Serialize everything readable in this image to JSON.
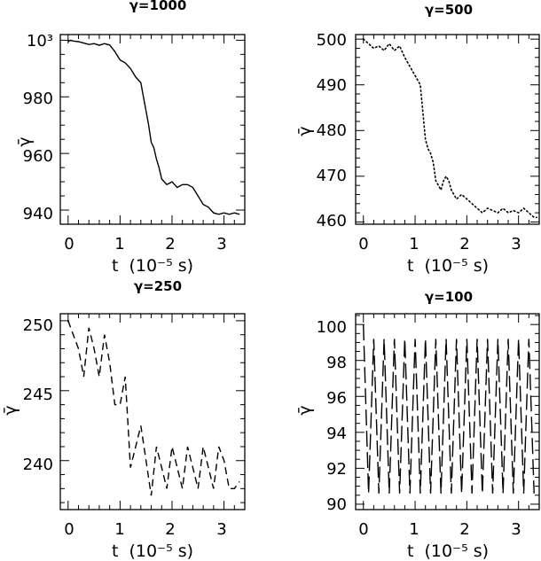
{
  "chart_data": [
    {
      "type": "line",
      "title": "γ=1000",
      "xlabel": "t  (10⁻⁵ s)",
      "ylabel": "γ̄",
      "xlim": [
        -0.15,
        3.4
      ],
      "ylim": [
        935,
        1002
      ],
      "xticks": [
        "0",
        "1",
        "2",
        "3"
      ],
      "yticks": [
        "10³",
        "980",
        "960",
        "940"
      ],
      "linestyle": "solid",
      "series": [
        {
          "x": [
            0,
            0.05,
            0.1,
            0.2,
            0.3,
            0.4,
            0.5,
            0.6,
            0.7,
            0.8,
            0.9,
            1.0,
            1.1,
            1.2,
            1.3,
            1.4,
            1.45,
            1.5,
            1.55,
            1.6,
            1.65,
            1.7,
            1.75,
            1.8,
            1.85,
            1.9,
            1.95,
            2.0,
            2.05,
            2.1,
            2.2,
            2.3,
            2.4,
            2.5,
            2.6,
            2.7,
            2.75,
            2.8,
            2.9,
            3.0,
            3.1,
            3.2,
            3.3
          ],
          "y": [
            999.5,
            1000,
            999.7,
            999.5,
            999,
            998.5,
            998.8,
            998.2,
            998.8,
            998.3,
            996,
            993,
            992,
            990,
            987,
            985,
            980,
            975,
            970,
            964,
            962,
            958,
            955,
            951,
            950,
            949,
            949.5,
            950,
            949,
            948,
            949,
            949,
            948,
            945,
            942,
            941,
            940,
            939,
            938.5,
            939,
            938.5,
            939,
            938.5
          ]
        }
      ]
    },
    {
      "type": "line",
      "title": "γ=500",
      "xlabel": "t  (10⁻⁵ s)",
      "ylabel": "γ̄",
      "xlim": [
        -0.15,
        3.4
      ],
      "ylim": [
        459.5,
        501
      ],
      "xticks": [
        "0",
        "1",
        "2",
        "3"
      ],
      "yticks": [
        "500",
        "490",
        "480",
        "470",
        "460"
      ],
      "linestyle": "dotted",
      "series": [
        {
          "x": [
            0,
            0.05,
            0.1,
            0.2,
            0.3,
            0.4,
            0.5,
            0.6,
            0.7,
            0.8,
            0.9,
            1.0,
            1.05,
            1.1,
            1.15,
            1.2,
            1.25,
            1.3,
            1.35,
            1.4,
            1.45,
            1.5,
            1.55,
            1.6,
            1.65,
            1.7,
            1.75,
            1.8,
            1.9,
            2.0,
            2.1,
            2.2,
            2.3,
            2.4,
            2.5,
            2.6,
            2.7,
            2.8,
            2.9,
            3.0,
            3.1,
            3.2,
            3.3,
            3.35
          ],
          "y": [
            500,
            499.5,
            499,
            498,
            498.5,
            497.5,
            499,
            497.5,
            498.5,
            496,
            494,
            492,
            491,
            490,
            484,
            478,
            476,
            475,
            473,
            469,
            468,
            467,
            469,
            470,
            469,
            467,
            466,
            465,
            466,
            465,
            464,
            463,
            462,
            463,
            462.5,
            462,
            463,
            462,
            462.5,
            462,
            463,
            462,
            461,
            461
          ]
        }
      ]
    },
    {
      "type": "line",
      "title": "γ=250",
      "xlabel": "t  (10⁻⁵ s)",
      "ylabel": "γ̄",
      "xlim": [
        -0.15,
        3.4
      ],
      "ylim": [
        236.5,
        250.5
      ],
      "xticks": [
        "0",
        "1",
        "2",
        "3"
      ],
      "yticks": [
        "250",
        "245",
        "240"
      ],
      "linestyle": "dashed",
      "series": [
        {
          "x": [
            0,
            0.1,
            0.2,
            0.3,
            0.4,
            0.5,
            0.6,
            0.7,
            0.8,
            0.9,
            1.0,
            1.1,
            1.2,
            1.3,
            1.4,
            1.5,
            1.6,
            1.7,
            1.8,
            1.9,
            2.0,
            2.1,
            2.2,
            2.3,
            2.4,
            2.5,
            2.6,
            2.7,
            2.8,
            2.9,
            3.0,
            3.1,
            3.2,
            3.3
          ],
          "y": [
            250,
            249,
            248,
            246,
            249.5,
            248,
            246,
            249,
            247,
            244,
            244,
            246,
            239.5,
            241,
            242.5,
            240,
            237.5,
            241,
            239.5,
            238,
            241,
            239.5,
            238,
            241,
            239.5,
            238,
            241,
            239.5,
            238,
            241,
            240,
            238,
            238,
            238.5
          ]
        }
      ]
    },
    {
      "type": "line",
      "title": "γ=100",
      "xlabel": "t  (10⁻⁵ s)",
      "ylabel": "γ̄",
      "xlim": [
        -0.15,
        3.4
      ],
      "ylim": [
        89.7,
        100.6
      ],
      "xticks": [
        "0",
        "1",
        "2",
        "3"
      ],
      "yticks": [
        "100",
        "98",
        "96",
        "94",
        "92",
        "90"
      ],
      "linestyle": "longdash",
      "oscillation": {
        "start": [
          0,
          100
        ],
        "period": 0.2,
        "high": 99.2,
        "low": 90.6,
        "t_end": 3.35
      }
    }
  ]
}
